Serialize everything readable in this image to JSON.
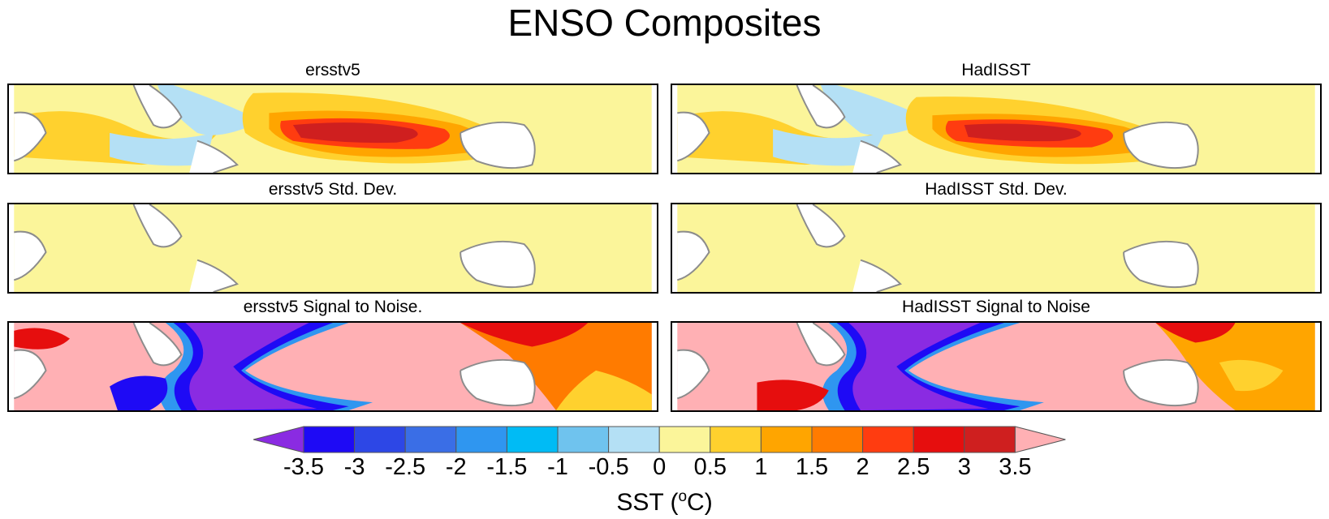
{
  "figure": {
    "title": "ENSO Composites"
  },
  "panels": [
    {
      "title": "ersstv5",
      "kind": "composite"
    },
    {
      "title": "HadISST",
      "kind": "composite"
    },
    {
      "title": "ersstv5 Std. Dev.",
      "kind": "stddev"
    },
    {
      "title": "HadISST Std. Dev.",
      "kind": "stddev"
    },
    {
      "title": "ersstv5 Signal to Noise.",
      "kind": "snr"
    },
    {
      "title": "HadISST Signal to Noise",
      "kind": "snr"
    }
  ],
  "colorbar": {
    "ticks": [
      "-3.5",
      "-3",
      "-2.5",
      "-2",
      "-1.5",
      "-1",
      "-0.5",
      "0",
      "0.5",
      "1",
      "1.5",
      "2",
      "2.5",
      "3",
      "3.5"
    ],
    "colors": [
      "#8a2be2",
      "#1e0af5",
      "#2d47e6",
      "#3a6ee6",
      "#2f96f0",
      "#00bbf5",
      "#6fc3ee",
      "#b4e0f5",
      "#fbf59a",
      "#ffd12e",
      "#ffa500",
      "#ff7b00",
      "#ff3c10",
      "#e60e0e",
      "#cf1f1f",
      "#ffb0b4"
    ],
    "label_text": "SST (",
    "label_sup": "o",
    "label_unit": "C)"
  },
  "map_colors": {
    "land": "#ffffff",
    "coast": "#8c8c8c"
  }
}
